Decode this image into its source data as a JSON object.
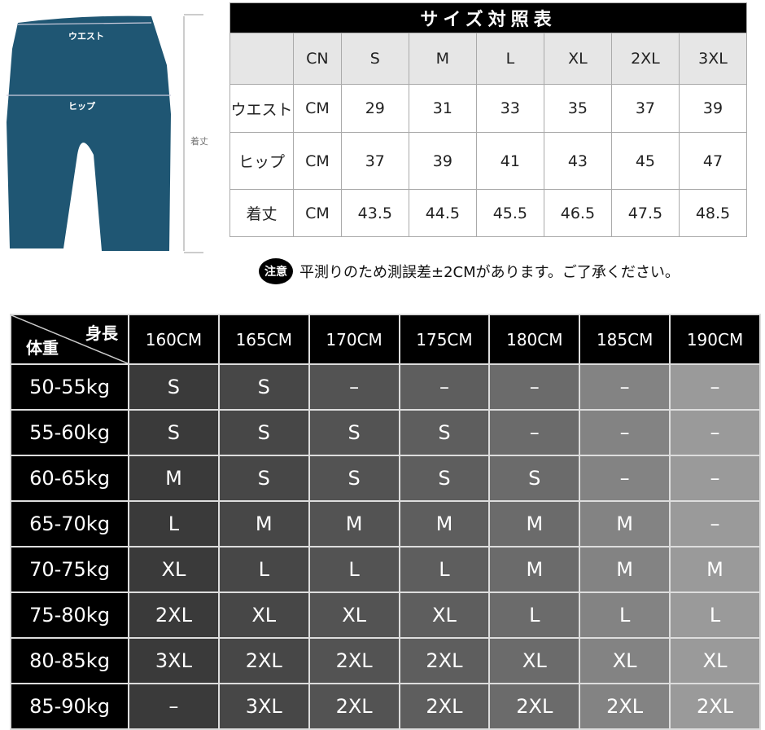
{
  "diagram": {
    "waist_label": "ウエスト",
    "hip_label": "ヒップ",
    "length_label": "着丈",
    "garment_color": "#1f5673"
  },
  "size_table": {
    "title": "サイズ対照表",
    "header": [
      "",
      "CN",
      "S",
      "M",
      "L",
      "XL",
      "2XL",
      "3XL"
    ],
    "rows": [
      {
        "label": "ウエスト",
        "unit": "CM",
        "values": [
          "29",
          "31",
          "33",
          "35",
          "37",
          "39"
        ]
      },
      {
        "label": "ヒップ",
        "unit": "CM",
        "values": [
          "37",
          "39",
          "41",
          "43",
          "45",
          "47"
        ]
      },
      {
        "label": "着丈",
        "unit": "CM",
        "values": [
          "43.5",
          "44.5",
          "45.5",
          "46.5",
          "47.5",
          "48.5"
        ]
      }
    ]
  },
  "note": {
    "badge": "注意",
    "text": "平測りのため測誤差±2CMがあります。ご了承ください。"
  },
  "recommend_table": {
    "corner_height": "身長",
    "corner_weight": "体重",
    "heights": [
      "160CM",
      "165CM",
      "170CM",
      "175CM",
      "180CM",
      "185CM",
      "190CM"
    ],
    "column_colors": [
      "#3a3a3a",
      "#474747",
      "#535353",
      "#5e5e5e",
      "#6b6b6b",
      "#838383",
      "#9a9a9a"
    ],
    "rows": [
      {
        "weight": "50-55kg",
        "sizes": [
          "S",
          "S",
          "–",
          "–",
          "–",
          "–",
          "–"
        ]
      },
      {
        "weight": "55-60kg",
        "sizes": [
          "S",
          "S",
          "S",
          "S",
          "–",
          "–",
          "–"
        ]
      },
      {
        "weight": "60-65kg",
        "sizes": [
          "M",
          "S",
          "S",
          "S",
          "S",
          "–",
          "–"
        ]
      },
      {
        "weight": "65-70kg",
        "sizes": [
          "L",
          "M",
          "M",
          "M",
          "M",
          "M",
          "–"
        ]
      },
      {
        "weight": "70-75kg",
        "sizes": [
          "XL",
          "L",
          "L",
          "L",
          "M",
          "M",
          "M"
        ]
      },
      {
        "weight": "75-80kg",
        "sizes": [
          "2XL",
          "XL",
          "XL",
          "XL",
          "L",
          "L",
          "L"
        ]
      },
      {
        "weight": "80-85kg",
        "sizes": [
          "3XL",
          "2XL",
          "2XL",
          "2XL",
          "XL",
          "XL",
          "XL"
        ]
      },
      {
        "weight": "85-90kg",
        "sizes": [
          "–",
          "3XL",
          "2XL",
          "2XL",
          "2XL",
          "2XL",
          "2XL"
        ]
      }
    ]
  }
}
